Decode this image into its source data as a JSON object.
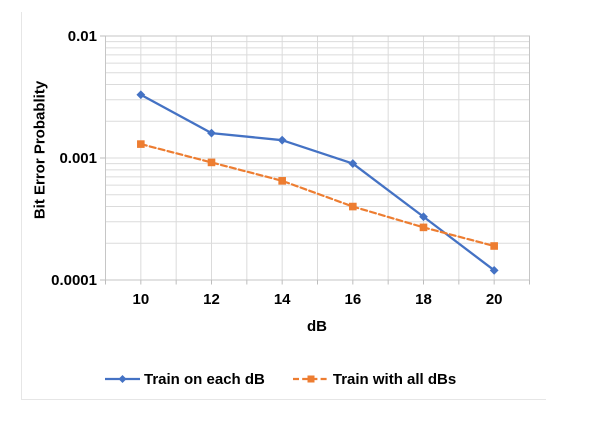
{
  "colors": {
    "series1": "#4472C4",
    "series2": "#ED7D31",
    "gridline": "#DBDBDB",
    "axis": "#C6C6C6",
    "tick": "#BDBDBD",
    "text": "#000000",
    "frame": "#E6E6E6",
    "background": "#FFFFFF"
  },
  "chart_data": {
    "type": "line",
    "title": "",
    "xlabel": "dB",
    "ylabel": "Bit Error Probablity",
    "x": [
      10,
      12,
      14,
      16,
      18,
      20
    ],
    "xlim": [
      9,
      21
    ],
    "ylim": [
      0.0001,
      0.01
    ],
    "y_scale": "log",
    "grid": "on",
    "legend_position": "bottom",
    "x_tick_labels": [
      "10",
      "12",
      "14",
      "16",
      "18",
      "20"
    ],
    "y_tick_values": [
      0.01,
      0.001,
      0.0001
    ],
    "y_tick_labels": [
      "0.01",
      "0.001",
      "0.0001"
    ],
    "series": [
      {
        "name": "Train on each dB",
        "color": "#4472C4",
        "line_style": "solid",
        "marker": "diamond",
        "values": [
          0.0033,
          0.0016,
          0.0014,
          0.0009,
          0.00033,
          0.00012
        ]
      },
      {
        "name": "Train with all dBs",
        "color": "#ED7D31",
        "line_style": "dashed",
        "marker": "square",
        "values": [
          0.0013,
          0.00092,
          0.00065,
          0.0004,
          0.00027,
          0.00019
        ]
      }
    ]
  }
}
